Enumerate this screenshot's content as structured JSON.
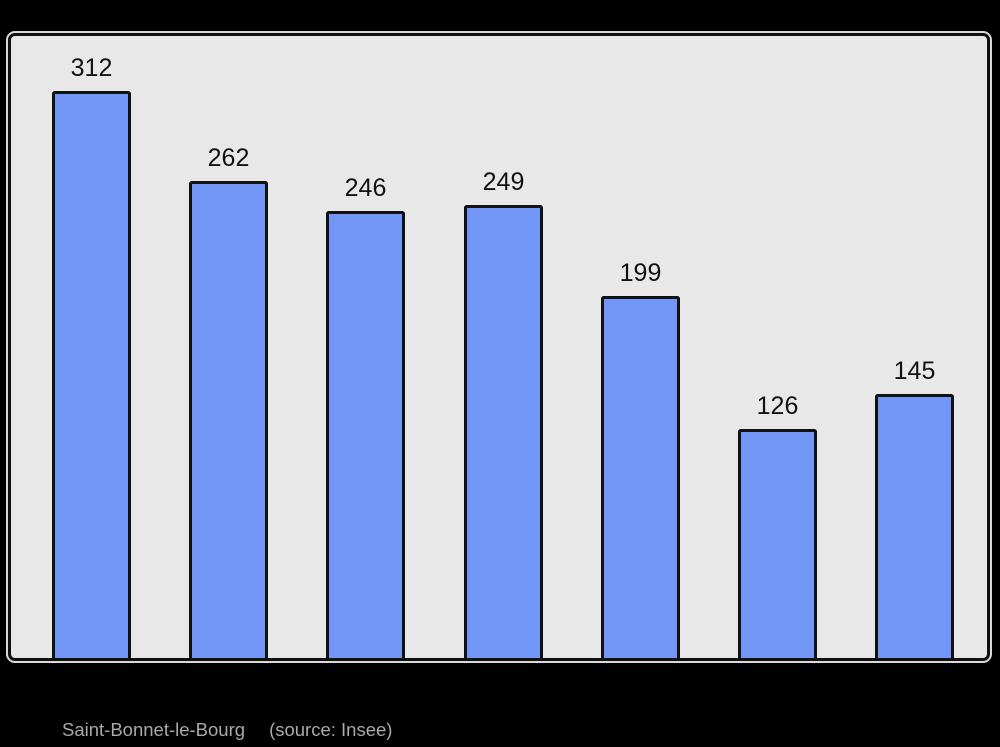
{
  "chart_data": {
    "type": "bar",
    "values": [
      312,
      262,
      246,
      249,
      199,
      126,
      145
    ],
    "bar_labels": [
      "312",
      "262",
      "246",
      "249",
      "199",
      "126",
      "145"
    ],
    "title": "",
    "xlabel": "",
    "ylabel": "",
    "ylim": [
      0,
      342
    ],
    "grid": false,
    "legend": "none",
    "value_labels_position": "above-bars"
  },
  "caption": {
    "location": "Saint-Bonnet-le-Bourg",
    "source": "(source: Insee)"
  },
  "colors": {
    "background": "#000000",
    "plot_background": "#e8e8e8",
    "bar_fill": "#7397f6",
    "stroke": "#111111",
    "value_label": "#111111",
    "caption_text": "#a9a9a9"
  }
}
